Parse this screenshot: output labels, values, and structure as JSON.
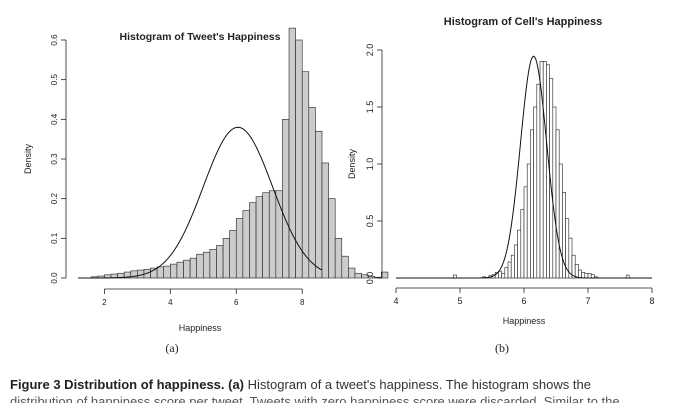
{
  "chart_data": [
    {
      "type": "bar",
      "subtype": "histogram",
      "title": "Histogram of Tweet's Happiness",
      "xlabel": "Happiness",
      "ylabel": "Density",
      "panel_label": "(a)",
      "xlim": [
        1.2,
        8.6
      ],
      "ylim": [
        0,
        0.6
      ],
      "xticks": [
        2,
        4,
        6,
        8
      ],
      "yticks": [
        0.0,
        0.1,
        0.2,
        0.3,
        0.4,
        0.5,
        0.6
      ],
      "ytick_labels": [
        "0.0",
        "0.1",
        "0.2",
        "0.3",
        "0.4",
        "0.5",
        "0.6"
      ],
      "bin_width": 0.2,
      "bin_start": 1.6,
      "bar_fill": "#cccccc",
      "densities": [
        0.003,
        0.005,
        0.008,
        0.01,
        0.012,
        0.015,
        0.018,
        0.02,
        0.022,
        0.025,
        0.028,
        0.03,
        0.035,
        0.04,
        0.045,
        0.05,
        0.06,
        0.065,
        0.072,
        0.082,
        0.1,
        0.12,
        0.15,
        0.17,
        0.19,
        0.205,
        0.215,
        0.22,
        0.22,
        0.4,
        0.63,
        0.6,
        0.52,
        0.43,
        0.37,
        0.29,
        0.2,
        0.1,
        0.055,
        0.025,
        0.012,
        0.008,
        0.004,
        0.002,
        0.015
      ],
      "curve": {
        "type": "normal-density",
        "mean": 6.05,
        "sd": 1.05
      }
    },
    {
      "type": "bar",
      "subtype": "histogram",
      "title": "Histogram of Cell's Happiness",
      "xlabel": "Happiness",
      "ylabel": "Density",
      "panel_label": "(b)",
      "xlim": [
        4,
        8
      ],
      "ylim": [
        0,
        2.0
      ],
      "xticks": [
        4,
        5,
        6,
        7,
        8
      ],
      "yticks": [
        0.0,
        0.5,
        1.0,
        1.5,
        2.0
      ],
      "ytick_labels": [
        "0.0",
        "0.5",
        "1.0",
        "1.5",
        "2.0"
      ],
      "bin_width": 0.05,
      "bin_start": 5.35,
      "bar_fill": "#ffffff",
      "densities": [
        0.01,
        0.0,
        0.02,
        0.03,
        0.05,
        0.06,
        0.04,
        0.09,
        0.14,
        0.2,
        0.29,
        0.42,
        0.6,
        0.8,
        1.0,
        1.3,
        1.5,
        1.7,
        1.9,
        1.9,
        1.87,
        1.75,
        1.5,
        1.3,
        1.0,
        0.75,
        0.52,
        0.35,
        0.2,
        0.12,
        0.07,
        0.05,
        0.04,
        0.04,
        0.03,
        0.01
      ],
      "outliers": [
        {
          "x": 4.92,
          "y": 0.02
        },
        {
          "x": 7.62,
          "y": 0.02
        }
      ],
      "curve": {
        "type": "normal-density",
        "mean": 6.15,
        "sd": 0.205
      }
    }
  ],
  "caption": {
    "lead": "Figure 3  Distribution of happiness. (a)",
    "text": " Histogram of a tweet's happiness. The histogram shows the",
    "continuation": "distribution of happiness score per tweet. Tweets with zero happiness score were discarded. Similar to the"
  }
}
